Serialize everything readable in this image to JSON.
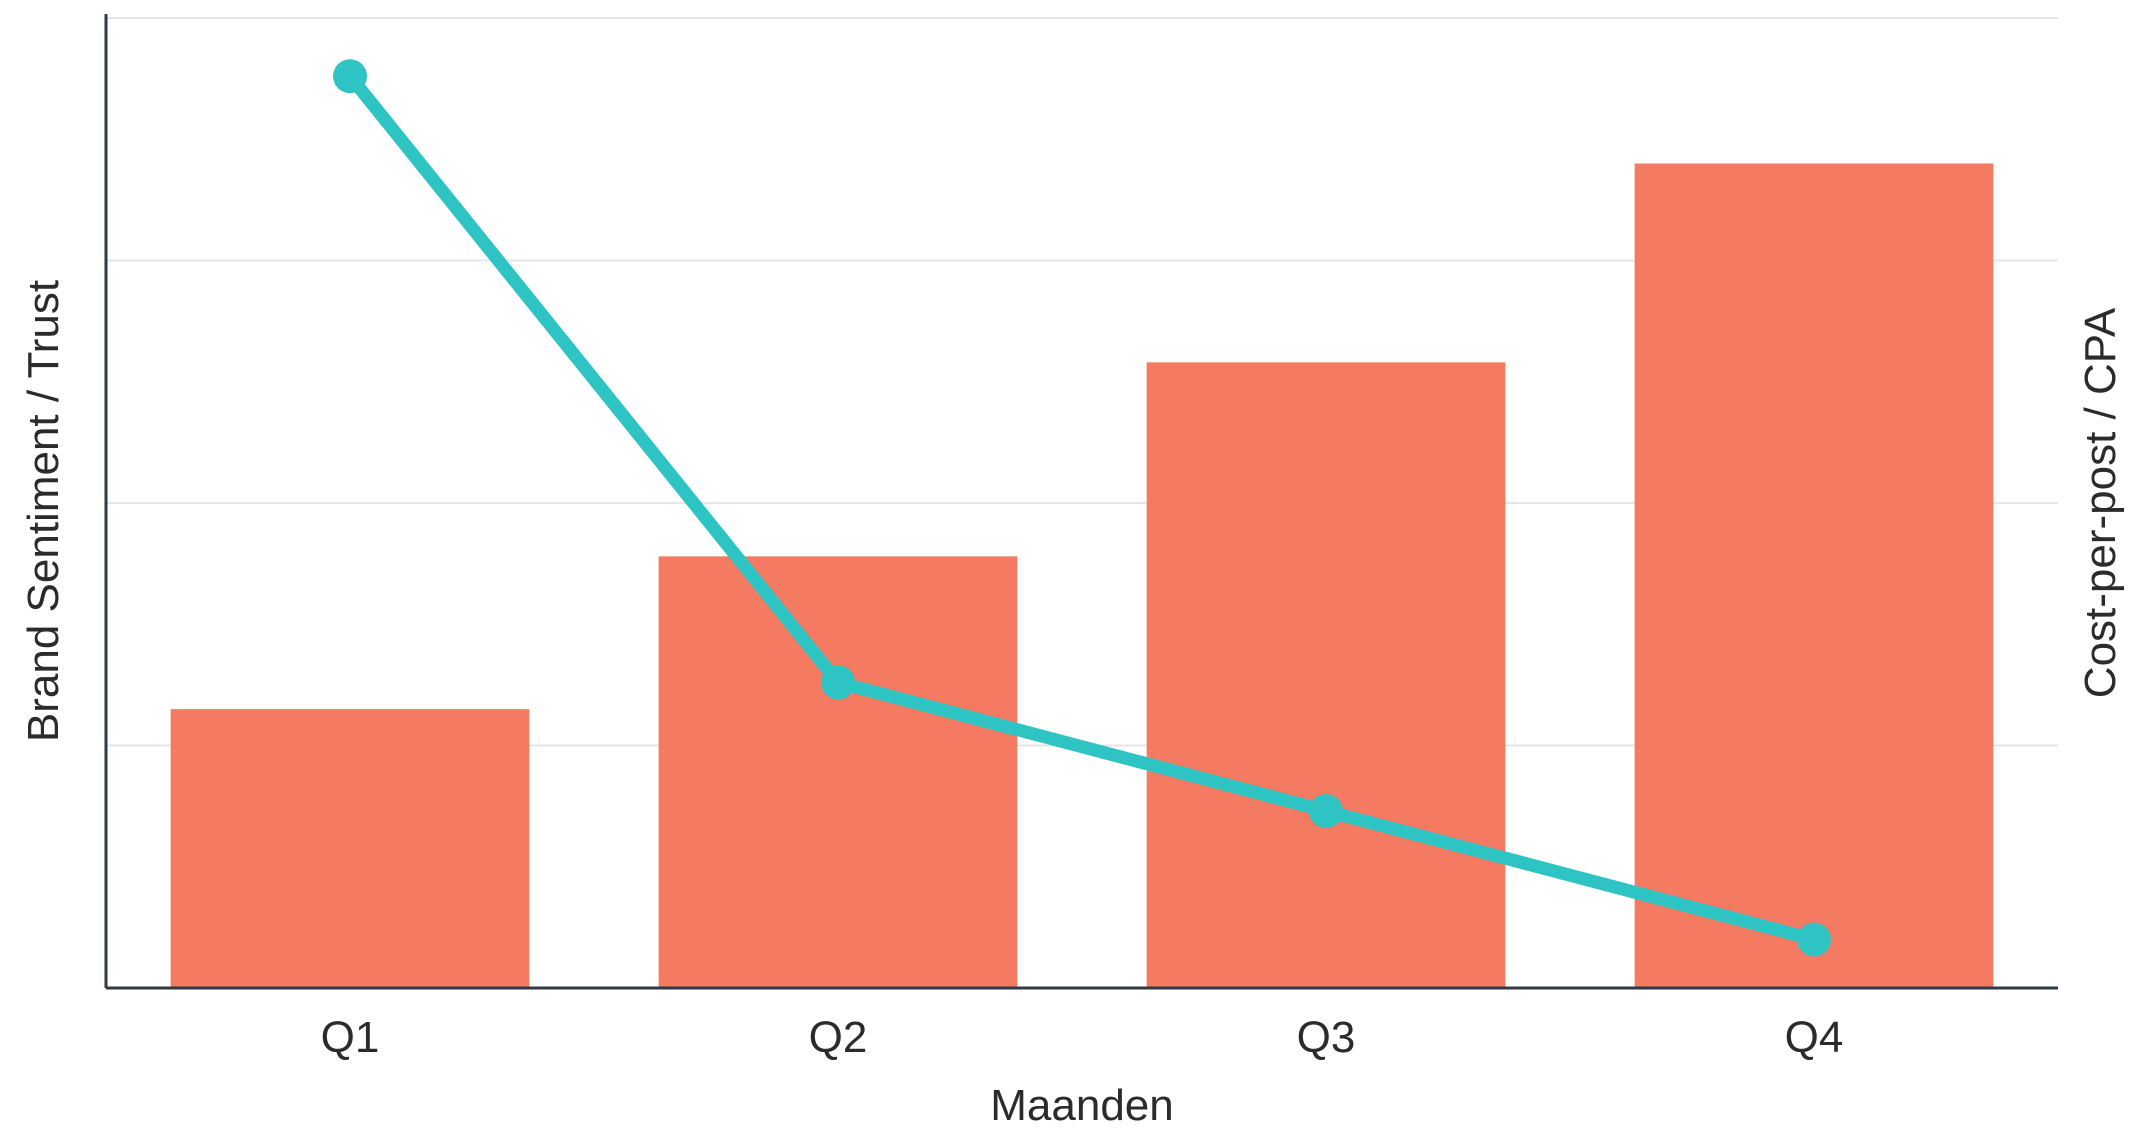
{
  "chart_data": {
    "type": "bar",
    "title": "",
    "categories": [
      "Q1",
      "Q2",
      "Q3",
      "Q4"
    ],
    "xlabel": "Maanden",
    "ylabel_left": "Brand Sentiment / Trust",
    "ylabel_right": "Cost-per-post / CPA",
    "ylim_left": [
      0,
      4
    ],
    "ylim_right": [
      0,
      4
    ],
    "grid": true,
    "series": [
      {
        "type": "bar",
        "axis": "left",
        "values": [
          1.15,
          1.78,
          2.58,
          3.4
        ],
        "color": "#f47a62"
      },
      {
        "type": "line",
        "axis": "right",
        "values": [
          3.76,
          1.26,
          0.73,
          0.2
        ],
        "color": "#2ec4c4"
      }
    ]
  }
}
